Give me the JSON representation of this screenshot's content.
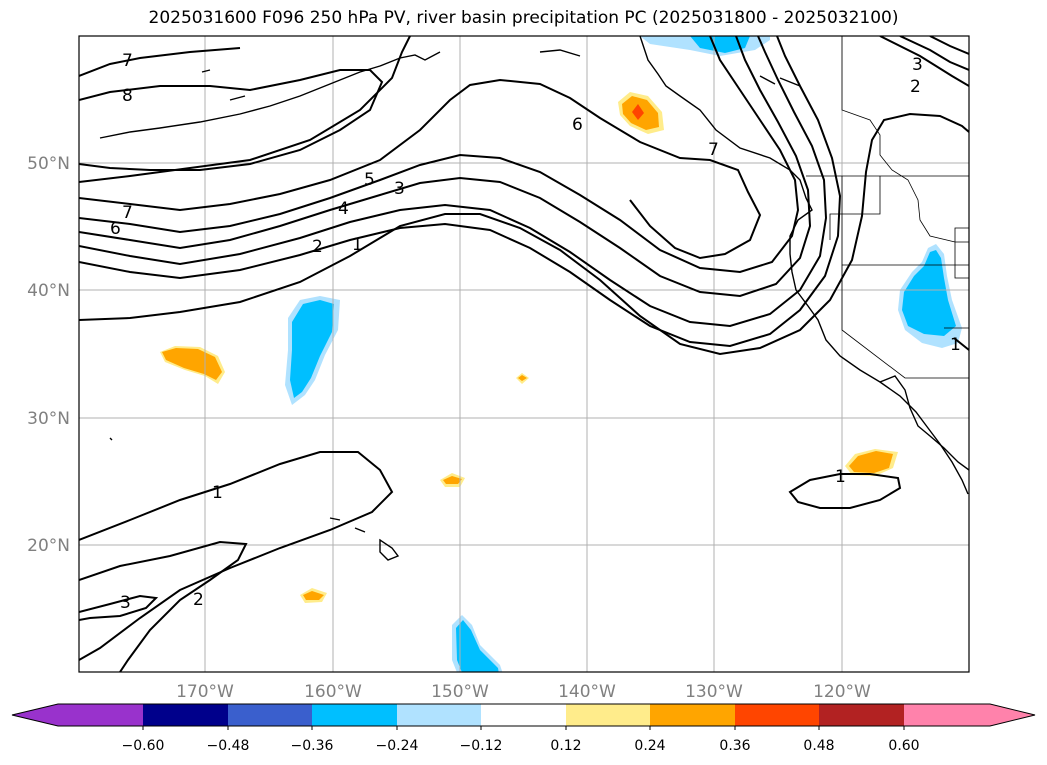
{
  "title": "2025031600 F096 250 hPa PV, river basin precipitation PC (2025031800 - 2025032100)",
  "map": {
    "lon_labels": [
      "170°W",
      "160°W",
      "150°W",
      "140°W",
      "130°W",
      "120°W"
    ],
    "lat_labels": [
      "50°N",
      "40°N",
      "30°N",
      "20°N"
    ],
    "contour_labels": [
      "7",
      "8",
      "7",
      "6",
      "5",
      "4",
      "3",
      "2",
      "1",
      "6",
      "7",
      "3",
      "2",
      "1",
      "2",
      "3",
      "1",
      "1"
    ]
  },
  "colorbar": {
    "tick_labels": [
      "−0.60",
      "−0.48",
      "−0.36",
      "−0.24",
      "−0.12",
      "0.12",
      "0.24",
      "0.36",
      "0.48",
      "0.60"
    ],
    "colors": [
      "#9932cc",
      "#00008b",
      "#3a5fcd",
      "#00bfff",
      "#b0e2ff",
      "#ffffff",
      "#ffec8b",
      "#ffa500",
      "#ff4500",
      "#b22222",
      "#ff82ab"
    ]
  }
}
